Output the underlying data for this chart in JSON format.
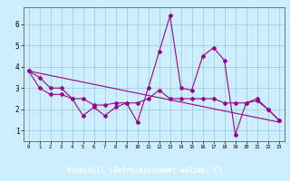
{
  "xlabel": "Windchill (Refroidissement éolien,°C)",
  "bg_color": "#cceeff",
  "line_color": "#990099",
  "grid_color": "#99cccc",
  "xlabel_bg": "#660066",
  "xlabel_fg": "#ffffff",
  "series1_x": [
    0,
    1,
    2,
    3,
    4,
    5,
    6,
    7,
    8,
    9,
    10,
    11,
    12,
    13,
    14,
    15,
    16,
    17,
    18,
    19,
    20,
    21,
    22,
    23
  ],
  "series1_y": [
    3.8,
    3.5,
    3.0,
    3.0,
    2.5,
    1.7,
    2.1,
    1.7,
    2.1,
    2.3,
    1.4,
    3.0,
    4.7,
    6.4,
    3.0,
    2.9,
    4.5,
    4.9,
    4.3,
    0.8,
    2.3,
    2.5,
    2.0,
    1.5
  ],
  "series2_x": [
    0,
    1,
    2,
    3,
    4,
    5,
    6,
    7,
    8,
    9,
    10,
    11,
    12,
    13,
    14,
    15,
    16,
    17,
    18,
    19,
    20,
    21,
    22,
    23
  ],
  "series2_y": [
    3.8,
    3.0,
    2.7,
    2.7,
    2.5,
    2.5,
    2.2,
    2.2,
    2.3,
    2.3,
    2.3,
    2.5,
    2.9,
    2.5,
    2.5,
    2.5,
    2.5,
    2.5,
    2.3,
    2.3,
    2.3,
    2.4,
    2.0,
    1.5
  ],
  "series3_x": [
    0,
    23
  ],
  "series3_y": [
    3.8,
    1.4
  ],
  "xlim": [
    -0.5,
    23.5
  ],
  "ylim": [
    0.5,
    6.8
  ],
  "yticks": [
    1,
    2,
    3,
    4,
    5,
    6
  ],
  "xticks": [
    0,
    1,
    2,
    3,
    4,
    5,
    6,
    7,
    8,
    9,
    10,
    11,
    12,
    13,
    14,
    15,
    16,
    17,
    18,
    19,
    20,
    21,
    22,
    23
  ]
}
